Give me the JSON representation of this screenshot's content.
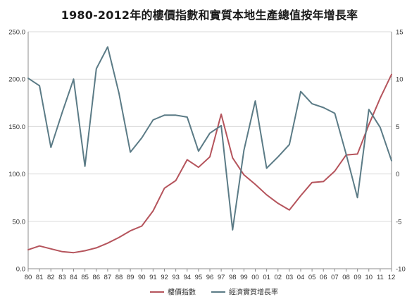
{
  "chart_data": {
    "type": "line",
    "title": "1980-2012年的樓價指數和實質本地生產總值按年增長率",
    "x": [
      "80",
      "81",
      "82",
      "83",
      "84",
      "85",
      "86",
      "87",
      "88",
      "89",
      "90",
      "91",
      "92",
      "93",
      "94",
      "95",
      "96",
      "97",
      "98",
      "99",
      "00",
      "01",
      "02",
      "03",
      "04",
      "05",
      "06",
      "07",
      "08",
      "09",
      "10",
      "11",
      "12"
    ],
    "x_tick_labels": [
      "80",
      "81",
      "82",
      "83",
      "84",
      "85",
      "86",
      "87",
      "88",
      "89",
      "90",
      "91",
      "92",
      "93",
      "94",
      "95",
      "96",
      "97",
      "98",
      "99",
      "00",
      "01",
      "02",
      "03",
      "04",
      "05",
      "06",
      "07",
      "08",
      "09",
      "10",
      "11",
      "12"
    ],
    "y_left_ticks": [
      "0.0",
      "50.0",
      "100.0",
      "150.0",
      "200.0",
      "250.0"
    ],
    "y_right_ticks": [
      "-10",
      "-5",
      "0",
      "5",
      "10",
      "15"
    ],
    "ylim_left": [
      0,
      250
    ],
    "ylim_right": [
      -10,
      15
    ],
    "grid": "horizontal",
    "legend_position": "bottom",
    "series": [
      {
        "name": "樓價指數",
        "axis": "left",
        "color": "#b5545c",
        "values": [
          20,
          24,
          21,
          18,
          17,
          19,
          22,
          27,
          33,
          40,
          45,
          61,
          85,
          93,
          115,
          107,
          118,
          163,
          117,
          99,
          89,
          78,
          69,
          62,
          77,
          91,
          92,
          103,
          120,
          121,
          152,
          180,
          205
        ]
      },
      {
        "name": "經濟實質增長率",
        "axis": "right",
        "color": "#5b7b86",
        "values": [
          10.1,
          9.3,
          2.8,
          6.5,
          10.0,
          0.8,
          11.1,
          13.4,
          8.5,
          2.3,
          3.8,
          5.7,
          6.2,
          6.2,
          6.0,
          2.4,
          4.3,
          5.1,
          -5.9,
          2.5,
          7.7,
          0.6,
          1.8,
          3.1,
          8.7,
          7.4,
          7.0,
          6.4,
          2.1,
          -2.5,
          6.8,
          4.9,
          1.4
        ]
      }
    ]
  }
}
